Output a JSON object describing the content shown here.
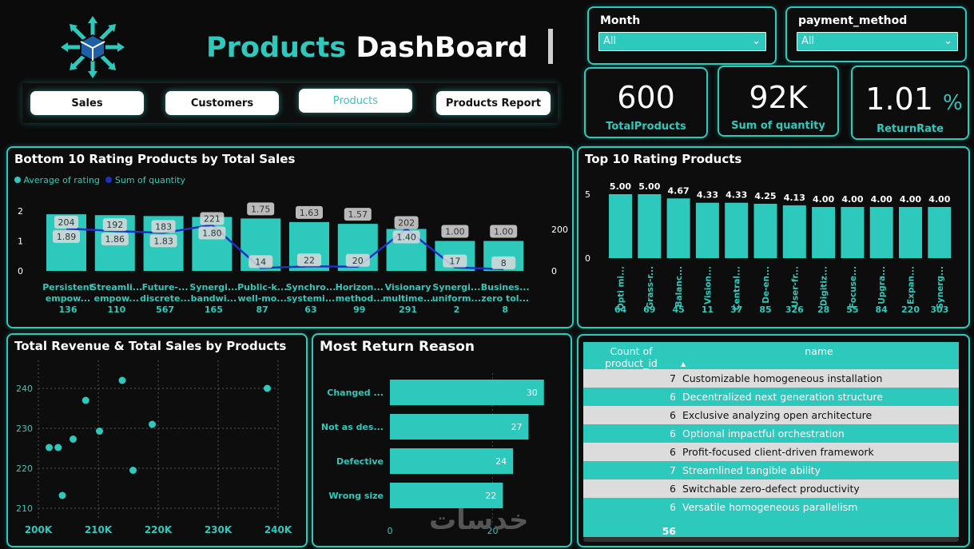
{
  "header": {
    "title_part1": "Products",
    "title_part2": "DashBoard"
  },
  "nav": {
    "sales": "Sales",
    "customers": "Customers",
    "products": "Products",
    "report": "Products Report"
  },
  "slicers": {
    "month": {
      "label": "Month",
      "value": "All"
    },
    "payment": {
      "label": "payment_method",
      "value": "All"
    }
  },
  "kpis": {
    "total_products": {
      "value": "600",
      "label": "TotalProducts"
    },
    "sum_quantity": {
      "value": "92K",
      "label": "Sum of quantity"
    },
    "return_rate": {
      "value": "1.01",
      "unit": "%",
      "label": "ReturnRate"
    }
  },
  "bottom10": {
    "title": "Bottom 10 Rating Products by Total Sales",
    "legend_rating": "Average of rating",
    "legend_qty": "Sum of quantity",
    "left_ticks": [
      "0",
      "1",
      "2"
    ],
    "right_ticks": [
      "0",
      "200"
    ]
  },
  "top10": {
    "title": "Top 10 Rating Products",
    "ticks": [
      "0",
      "5"
    ]
  },
  "scatter": {
    "title": "Total Revenue & Total Sales by Products"
  },
  "returns": {
    "title": "Most Return Reason"
  },
  "table": {
    "col1": "Count of product_id",
    "col2": "name",
    "sort_icon": "▲",
    "rows": [
      {
        "count": "7",
        "name": "Customizable homogeneous installation"
      },
      {
        "count": "6",
        "name": "Decentralized next generation structure"
      },
      {
        "count": "6",
        "name": "Exclusive analyzing open architecture"
      },
      {
        "count": "6",
        "name": "Optional impactful orchestration"
      },
      {
        "count": "6",
        "name": "Profit-focused client-driven framework"
      },
      {
        "count": "7",
        "name": "Streamlined tangible ability"
      },
      {
        "count": "6",
        "name": "Switchable zero-defect productivity"
      },
      {
        "count": "6",
        "name": "Versatile homogeneous parallelism"
      }
    ],
    "total": "56"
  },
  "watermark": "خدسات",
  "chart_data": [
    {
      "type": "bar",
      "title": "Bottom 10 Rating Products by Total Sales",
      "categories": [
        {
          "l1": "Persistent",
          "l2": "empow...",
          "l3": "136"
        },
        {
          "l1": "Streamli...",
          "l2": "empow...",
          "l3": "110"
        },
        {
          "l1": "Future-...",
          "l2": "discrete...",
          "l3": "567"
        },
        {
          "l1": "Synergi...",
          "l2": "bandwi...",
          "l3": "165"
        },
        {
          "l1": "Public-k...",
          "l2": "well-mo...",
          "l3": "87"
        },
        {
          "l1": "Synchro...",
          "l2": "systemi...",
          "l3": "63"
        },
        {
          "l1": "Horizon...",
          "l2": "method...",
          "l3": "99"
        },
        {
          "l1": "Visionary",
          "l2": "multime...",
          "l3": "291"
        },
        {
          "l1": "Synergi...",
          "l2": "uniform...",
          "l3": "2"
        },
        {
          "l1": "Busines...",
          "l2": "zero tol...",
          "l3": "8"
        }
      ],
      "series": [
        {
          "name": "Average of rating",
          "values": [
            1.89,
            1.86,
            1.83,
            1.8,
            1.75,
            1.63,
            1.57,
            1.4,
            1.0,
            1.0
          ],
          "labels": [
            "1.89",
            "1.86",
            "1.83",
            "1.80",
            "1.75",
            "1.63",
            "1.57",
            "1.40",
            "1.00",
            "1.00"
          ]
        },
        {
          "name": "Sum of quantity",
          "values": [
            204,
            192,
            183,
            221,
            14,
            22,
            20,
            202,
            17,
            8
          ],
          "labels": [
            "204",
            "192",
            "183",
            "221",
            "14",
            "22",
            "20",
            "202",
            "17",
            "8"
          ]
        }
      ],
      "ylim": [
        0,
        2
      ],
      "y2lim": [
        0,
        300
      ]
    },
    {
      "type": "bar",
      "title": "Top 10 Rating Products",
      "categories": [
        {
          "name": "Opti mi...",
          "n": "64"
        },
        {
          "name": "Grass-r...",
          "n": "69"
        },
        {
          "name": "Balanc...",
          "n": "45"
        },
        {
          "name": "Vision...",
          "n": "11"
        },
        {
          "name": "Central...",
          "n": "37"
        },
        {
          "name": "De-en...",
          "n": "85"
        },
        {
          "name": "User-fr...",
          "n": "326"
        },
        {
          "name": "Digitiz...",
          "n": "28"
        },
        {
          "name": "Focuse...",
          "n": "55"
        },
        {
          "name": "Upgra...",
          "n": "84"
        },
        {
          "name": "Expan...",
          "n": "220"
        },
        {
          "name": "Synerg...",
          "n": "303"
        }
      ],
      "values": [
        5.0,
        5.0,
        4.67,
        4.33,
        4.33,
        4.25,
        4.13,
        4.0,
        4.0,
        4.0,
        4.0,
        4.0
      ],
      "labels": [
        "5.00",
        "5.00",
        "4.67",
        "4.33",
        "4.33",
        "4.25",
        "4.13",
        "4.00",
        "4.00",
        "4.00",
        "4.00",
        "4.00"
      ],
      "ylim": [
        0,
        5.6
      ]
    },
    {
      "type": "scatter",
      "title": "Total Revenue & Total Sales by Products",
      "x_ticks": [
        "200K",
        "210K",
        "220K",
        "230K",
        "240K"
      ],
      "y_ticks": [
        "210",
        "220",
        "230",
        "240"
      ],
      "xlim": [
        200000,
        240000
      ],
      "ylim": [
        207,
        247
      ],
      "points": [
        {
          "x": 201800,
          "y": 225.2
        },
        {
          "x": 203300,
          "y": 225.2
        },
        {
          "x": 205800,
          "y": 227.3
        },
        {
          "x": 204000,
          "y": 213.2
        },
        {
          "x": 207900,
          "y": 237.0
        },
        {
          "x": 210200,
          "y": 229.3
        },
        {
          "x": 214000,
          "y": 242.0
        },
        {
          "x": 215800,
          "y": 219.5
        },
        {
          "x": 219000,
          "y": 231.0
        },
        {
          "x": 238200,
          "y": 240.0
        }
      ]
    },
    {
      "type": "bar",
      "orientation": "horizontal",
      "title": "Most Return Reason",
      "categories": [
        "Changed ...",
        "Not as des...",
        "Defective",
        "Wrong size"
      ],
      "values": [
        30,
        27,
        24,
        22
      ],
      "labels": [
        "30",
        "27",
        "24",
        "22"
      ],
      "x_ticks": [
        "0",
        "20"
      ],
      "xlim": [
        0,
        33
      ]
    }
  ]
}
